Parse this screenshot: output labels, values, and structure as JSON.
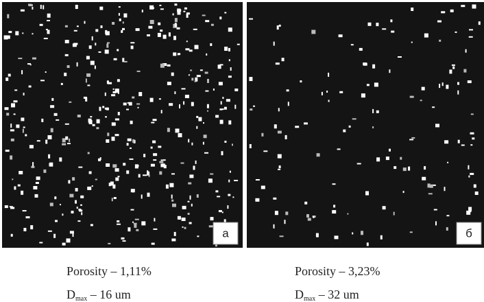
{
  "panels": [
    {
      "label": "а",
      "porosity": "Porosity – 1,11%",
      "dmax_symbol": "D",
      "dmax_sub": "max",
      "dmax_rest": " – 16 um"
    },
    {
      "label": "б",
      "porosity": "Porosity – 3,23%",
      "dmax_symbol": "D",
      "dmax_sub": "max",
      "dmax_rest": " – 32 um"
    }
  ]
}
